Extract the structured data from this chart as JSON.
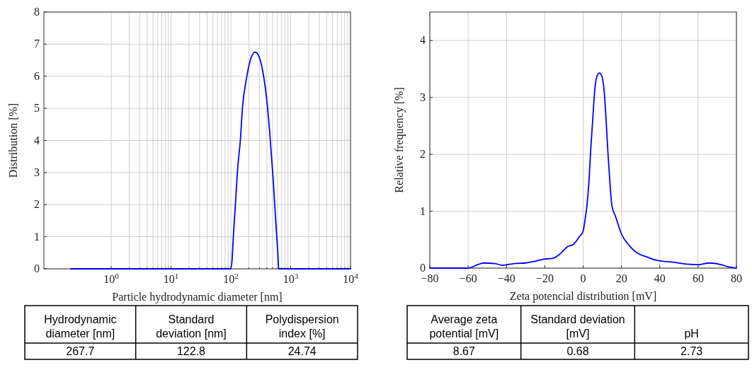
{
  "chart_data": [
    {
      "type": "line",
      "xlabel": "Particle hydrodynamic diameter [nm]",
      "ylabel": "Distribution [%]",
      "log": "x",
      "grid": true,
      "xlim": [
        0.075,
        10000
      ],
      "ylim": [
        0,
        8
      ],
      "xticks": [
        {
          "value": 1,
          "label": "10$^{0}$"
        },
        {
          "value": 2,
          "label": null
        },
        {
          "value": 3,
          "label": null
        },
        {
          "value": 4,
          "label": null
        },
        {
          "value": 5,
          "label": null
        },
        {
          "value": 6,
          "label": null
        },
        {
          "value": 7,
          "label": null
        },
        {
          "value": 8,
          "label": null
        },
        {
          "value": 9,
          "label": null
        },
        {
          "value": 10,
          "label": "10$^{1}$"
        },
        {
          "value": 20,
          "label": null
        },
        {
          "value": 30,
          "label": null
        },
        {
          "value": 40,
          "label": null
        },
        {
          "value": 50,
          "label": null
        },
        {
          "value": 60,
          "label": null
        },
        {
          "value": 70,
          "label": null
        },
        {
          "value": 80,
          "label": null
        },
        {
          "value": 90,
          "label": null
        },
        {
          "value": 100,
          "label": "10$^{2}$"
        },
        {
          "value": 200,
          "label": null
        },
        {
          "value": 300,
          "label": null
        },
        {
          "value": 400,
          "label": null
        },
        {
          "value": 500,
          "label": null
        },
        {
          "value": 600,
          "label": null
        },
        {
          "value": 700,
          "label": null
        },
        {
          "value": 800,
          "label": null
        },
        {
          "value": 900,
          "label": null
        },
        {
          "value": 1000,
          "label": "10$^{3}$"
        },
        {
          "value": 2000,
          "label": null
        },
        {
          "value": 3000,
          "label": null
        },
        {
          "value": 4000,
          "label": null
        },
        {
          "value": 5000,
          "label": null
        },
        {
          "value": 6000,
          "label": null
        },
        {
          "value": 7000,
          "label": null
        },
        {
          "value": 8000,
          "label": null
        },
        {
          "value": 9000,
          "label": null
        },
        {
          "value": 10000,
          "label": "10$^{4}$"
        }
      ],
      "yticks": [
        0,
        1,
        2,
        3,
        4,
        5,
        6,
        7,
        8
      ],
      "series": [
        {
          "color": "#0000ff",
          "x": [
            0.21,
            100,
            105,
            110,
            120,
            131,
            144,
            157,
            180,
            206,
            254,
            297,
            340,
            389,
            446,
            512,
            560,
            612,
            631,
            10000
          ],
          "values": [
            0,
            0,
            0.3,
            1.0,
            2.1,
            3.2,
            4.0,
            5.06,
            5.87,
            6.42,
            6.75,
            6.6,
            6.17,
            5.43,
            4.26,
            2.72,
            1.54,
            0.44,
            0,
            0
          ]
        }
      ],
      "annotations": [
        "Hydrodynamic diameter [nm]",
        "Standard deviation [nm]",
        "Polydispersion index [%]",
        "267.7",
        "122.8",
        "24.74"
      ]
    },
    {
      "type": "line",
      "xlabel": "Zeta potencial distribution [mV]",
      "ylabel": "Relative frequency [%]",
      "grid": true,
      "xlim": [
        -80,
        80
      ],
      "ylim": [
        0,
        4.5
      ],
      "xticks": [
        -80,
        -60,
        -40,
        -20,
        0,
        20,
        40,
        60,
        80
      ],
      "yticks": [
        0,
        1,
        2,
        3,
        4
      ],
      "series": [
        {
          "color": "#0000ff",
          "x": [
            -80,
            -60,
            -55,
            -52,
            -46,
            -42,
            -36,
            -30,
            -25,
            -20,
            -16,
            -12,
            -8,
            -5,
            -2,
            0,
            1,
            2,
            3,
            4,
            5,
            6,
            7,
            8.5,
            10,
            11,
            12,
            13,
            14,
            15,
            17,
            20,
            24,
            28,
            33,
            38,
            42,
            48,
            54,
            60,
            66,
            72,
            76,
            80
          ],
          "values": [
            0,
            0,
            0.06,
            0.09,
            0.08,
            0.05,
            0.08,
            0.09,
            0.12,
            0.16,
            0.17,
            0.25,
            0.38,
            0.42,
            0.55,
            0.65,
            0.85,
            1.1,
            1.5,
            2.1,
            2.6,
            3.1,
            3.35,
            3.43,
            3.35,
            3.1,
            2.6,
            2.0,
            1.5,
            1.1,
            0.9,
            0.6,
            0.4,
            0.27,
            0.2,
            0.14,
            0.12,
            0.1,
            0.07,
            0.06,
            0.09,
            0.06,
            0.02,
            0
          ]
        }
      ],
      "annotations": [
        "Average zeta potential [mV]",
        "Standard deviation [mV]",
        "pH",
        "8.67",
        "0.68",
        "2.73"
      ]
    }
  ]
}
